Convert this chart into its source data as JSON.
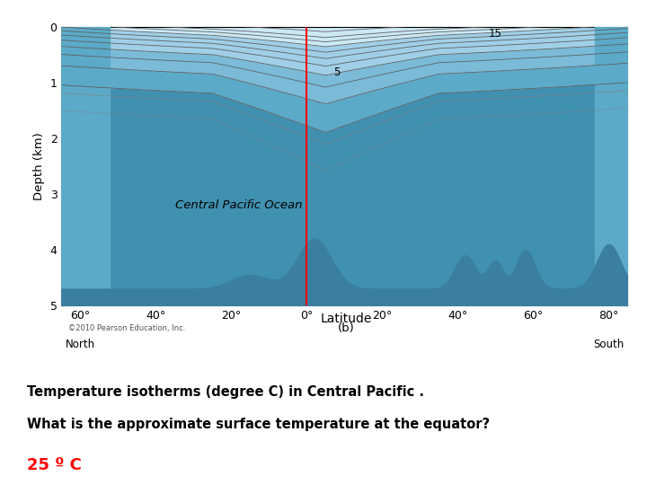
{
  "title_line1": "Temperature isotherms (degree C) in Central Pacific .",
  "title_line2": "What is the approximate surface temperature at the equator?",
  "title_line3": "25 º C",
  "xlabel": "Latitude",
  "xlabel_sub": "(b)",
  "ylabel": "Depth (km)",
  "copyright": "©2010 Pearson Education, Inc.",
  "x_ticks": [
    -60,
    -40,
    -20,
    0,
    20,
    40,
    60,
    80
  ],
  "x_tick_labels": [
    "60°",
    "40°",
    "20°",
    "0°",
    "20°",
    "40°",
    "60°",
    "80°"
  ],
  "y_ticks": [
    0,
    1,
    2,
    3,
    4,
    5
  ],
  "ylim": [
    0,
    5
  ],
  "xlim": [
    -65,
    85
  ],
  "ocean_label": "Central Pacific Ocean",
  "color_very_light": "#cce9f4",
  "color_light": "#a0d0e8",
  "color_mid": "#7bbbd8",
  "color_dark": "#5baac8",
  "color_deep": "#4090b0",
  "color_floor": "#3a7fa0",
  "bg_color": "#ffffff",
  "yellow_bg": "#ffff00",
  "red_line_x": 0,
  "contour_color": "#606060",
  "dashed_color": "#808080"
}
